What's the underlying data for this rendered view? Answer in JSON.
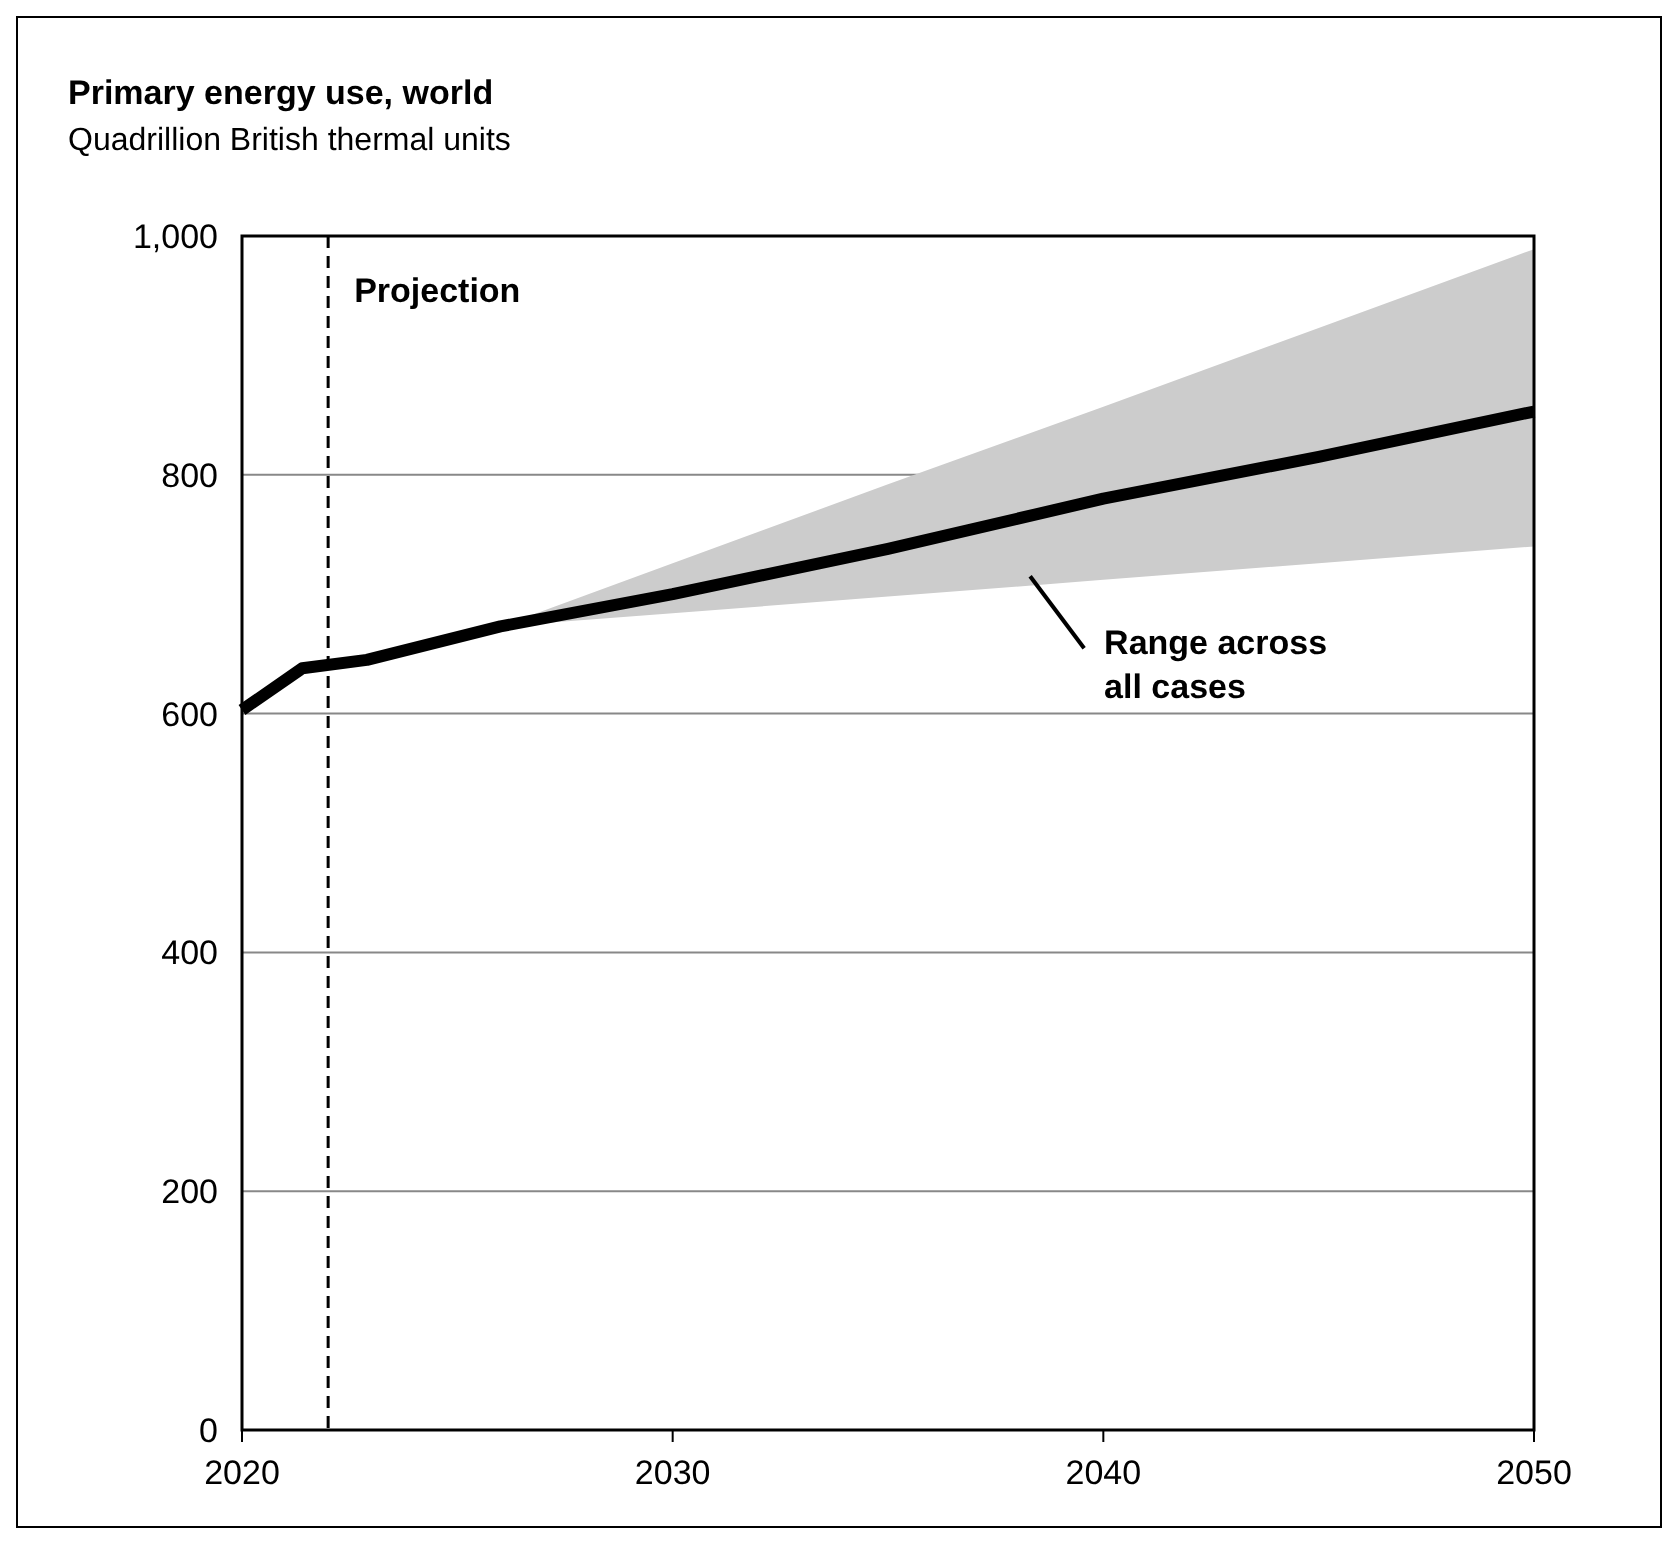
{
  "chart_data": {
    "type": "line",
    "title": "Primary energy use, world",
    "subtitle": "Quadrillion British thermal units",
    "x": [
      2020,
      2021.4,
      2022.9,
      2026,
      2030,
      2035,
      2040,
      2045,
      2050
    ],
    "series": [
      {
        "color": "#000000",
        "values": [
          603,
          638,
          645,
          673,
          700,
          738,
          780,
          815,
          853
        ],
        "lower": [
          null,
          null,
          null,
          673,
          684,
          698,
          712,
          726,
          740
        ],
        "upper": [
          null,
          null,
          null,
          673,
          726,
          792,
          857,
          923,
          989
        ]
      }
    ],
    "xlim": [
      2020,
      2050
    ],
    "xticks": [
      2020,
      2030,
      2040,
      2050
    ],
    "ylim": [
      0,
      1000
    ],
    "yticks": [
      0,
      200,
      400,
      600,
      800,
      {
        "value": 1000,
        "label": "1,000"
      }
    ],
    "grid": "y",
    "ref_lines": [
      {
        "axis": "x",
        "value": 2022,
        "label": "Projection",
        "line_style": "dashed",
        "color": "#000000"
      }
    ],
    "annotations": [
      "Range across all cases"
    ]
  }
}
